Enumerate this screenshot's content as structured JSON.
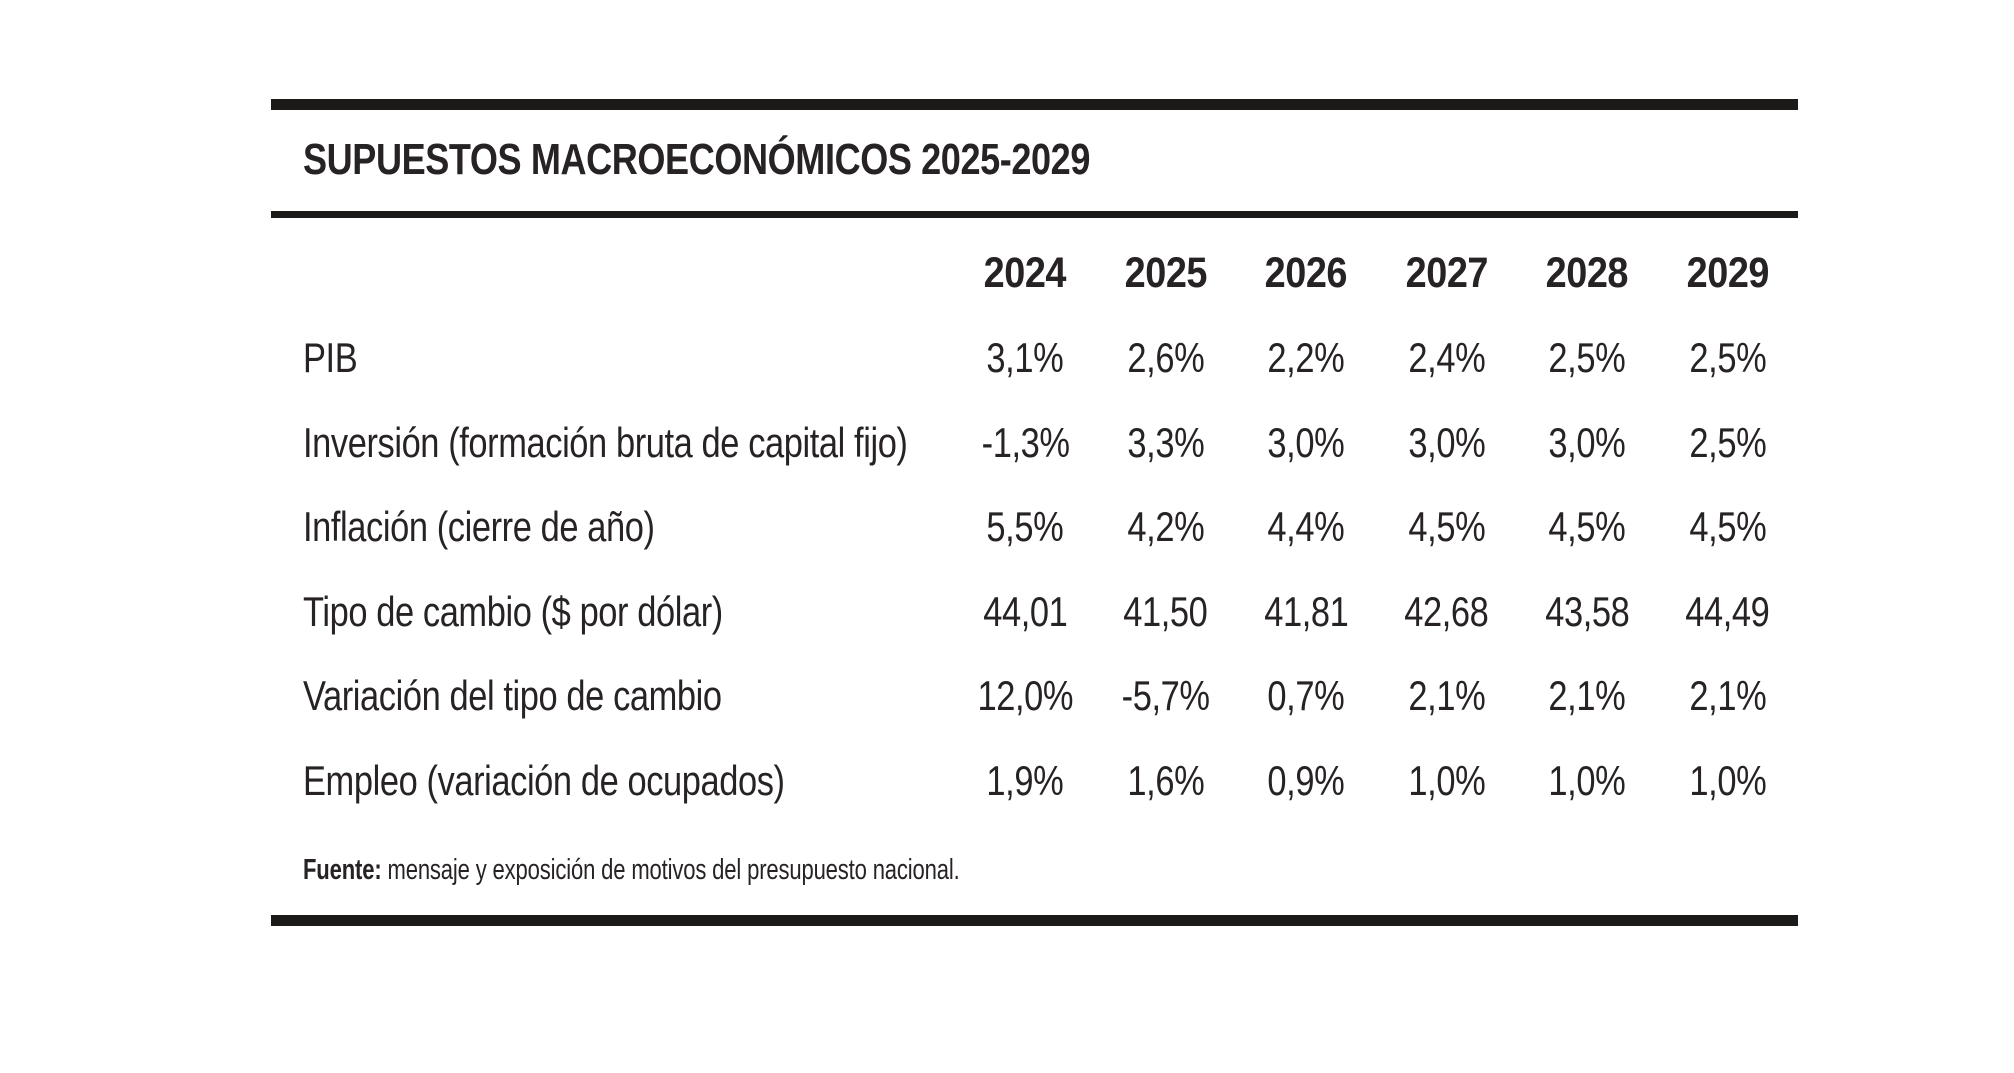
{
  "chart_data": {
    "type": "table",
    "title": "SUPUESTOS MACROECONÓMICOS 2025-2029",
    "columns": [
      "2024",
      "2025",
      "2026",
      "2027",
      "2028",
      "2029"
    ],
    "rows": [
      {
        "label": "PIB",
        "values": [
          "3,1%",
          "2,6%",
          "2,2%",
          "2,4%",
          "2,5%",
          "2,5%"
        ]
      },
      {
        "label": "Inversión (formación bruta de capital fijo)",
        "values": [
          "-1,3%",
          "3,3%",
          "3,0%",
          "3,0%",
          "3,0%",
          "2,5%"
        ]
      },
      {
        "label": "Inflación (cierre de año)",
        "values": [
          "5,5%",
          "4,2%",
          "4,4%",
          "4,5%",
          "4,5%",
          "4,5%"
        ]
      },
      {
        "label": "Tipo de cambio ($ por dólar)",
        "values": [
          "44,01",
          "41,50",
          "41,81",
          "42,68",
          "43,58",
          "44,49"
        ]
      },
      {
        "label": "Variación del tipo de cambio",
        "values": [
          "12,0%",
          "-5,7%",
          "0,7%",
          "2,1%",
          "2,1%",
          "2,1%"
        ]
      },
      {
        "label": "Empleo (variación de ocupados)",
        "values": [
          "1,9%",
          "1,6%",
          "0,9%",
          "1,0%",
          "1,0%",
          "1,0%"
        ]
      }
    ],
    "source_label": "Fuente:",
    "source_text": "mensaje y exposición de motivos del presupuesto nacional.",
    "layout_hints": {
      "grid": "off",
      "column_alignment": "center",
      "value_format": "comma decimal separator (es-UY)"
    }
  },
  "colors": {
    "background": "#ffffff",
    "text": "#272325",
    "rule": "#1b1a19"
  }
}
